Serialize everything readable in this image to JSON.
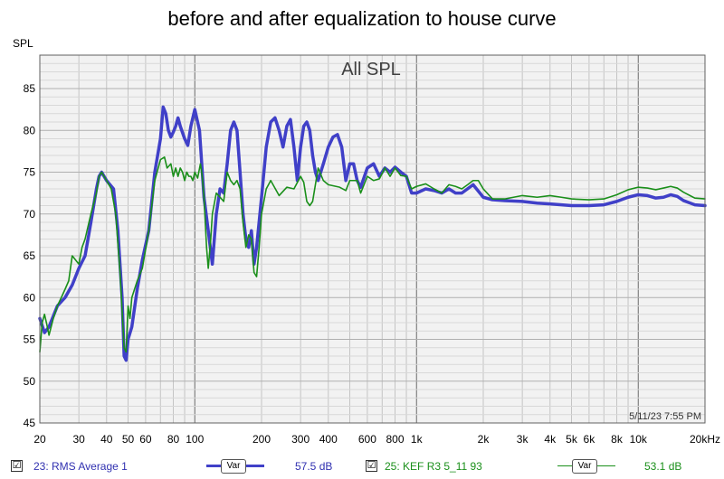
{
  "title": "before and after equalization to house curve",
  "chart_data": {
    "type": "line",
    "title": "All SPL",
    "ylabel": "SPL",
    "xlabel": "",
    "x_scale": "log",
    "xlim": [
      20,
      20000
    ],
    "ylim": [
      45,
      89
    ],
    "yticks": [
      45,
      50,
      55,
      60,
      65,
      70,
      75,
      80,
      85
    ],
    "xticks": [
      {
        "value": 20,
        "label": "20"
      },
      {
        "value": 30,
        "label": "30"
      },
      {
        "value": 40,
        "label": "40"
      },
      {
        "value": 50,
        "label": "50"
      },
      {
        "value": 60,
        "label": "60"
      },
      {
        "value": 80,
        "label": "80"
      },
      {
        "value": 100,
        "label": "100"
      },
      {
        "value": 200,
        "label": "200"
      },
      {
        "value": 300,
        "label": "300"
      },
      {
        "value": 400,
        "label": "400"
      },
      {
        "value": 600,
        "label": "600"
      },
      {
        "value": 800,
        "label": "800"
      },
      {
        "value": 1000,
        "label": "1k"
      },
      {
        "value": 2000,
        "label": "2k"
      },
      {
        "value": 3000,
        "label": "3k"
      },
      {
        "value": 4000,
        "label": "4k"
      },
      {
        "value": 5000,
        "label": "5k"
      },
      {
        "value": 6000,
        "label": "6k"
      },
      {
        "value": 8000,
        "label": "8k"
      },
      {
        "value": 10000,
        "label": "10k"
      },
      {
        "value": 20000,
        "label": "20kHz"
      }
    ],
    "grid": true,
    "timestamp": "5/11/23 7:55 PM",
    "series": [
      {
        "name": "23: RMS Average 1",
        "color": "#4040c8",
        "points": [
          [
            20,
            57.5
          ],
          [
            21,
            55.8
          ],
          [
            22,
            56.5
          ],
          [
            24,
            59
          ],
          [
            26,
            60
          ],
          [
            28,
            61.5
          ],
          [
            30,
            63.5
          ],
          [
            32,
            65
          ],
          [
            34,
            69
          ],
          [
            36,
            73
          ],
          [
            37,
            74.5
          ],
          [
            38,
            75
          ],
          [
            40,
            74
          ],
          [
            43,
            73
          ],
          [
            45,
            68
          ],
          [
            47,
            60
          ],
          [
            48,
            53
          ],
          [
            49,
            52.5
          ],
          [
            50,
            55
          ],
          [
            52,
            56.5
          ],
          [
            55,
            61
          ],
          [
            58,
            64.5
          ],
          [
            62,
            68
          ],
          [
            66,
            75
          ],
          [
            70,
            79
          ],
          [
            72,
            82.8
          ],
          [
            74,
            82
          ],
          [
            76,
            80
          ],
          [
            78,
            79.2
          ],
          [
            80,
            79.8
          ],
          [
            82,
            80.5
          ],
          [
            84,
            81.5
          ],
          [
            86,
            80.5
          ],
          [
            90,
            79
          ],
          [
            93,
            78.2
          ],
          [
            96,
            80.5
          ],
          [
            100,
            82.5
          ],
          [
            105,
            80
          ],
          [
            110,
            72
          ],
          [
            115,
            68
          ],
          [
            120,
            64
          ],
          [
            125,
            70
          ],
          [
            130,
            73
          ],
          [
            135,
            72.5
          ],
          [
            140,
            76
          ],
          [
            145,
            80
          ],
          [
            150,
            81
          ],
          [
            155,
            80
          ],
          [
            160,
            75
          ],
          [
            165,
            70
          ],
          [
            170,
            67
          ],
          [
            175,
            66
          ],
          [
            180,
            68
          ],
          [
            185,
            64
          ],
          [
            190,
            66
          ],
          [
            200,
            72
          ],
          [
            210,
            78
          ],
          [
            220,
            81
          ],
          [
            230,
            81.5
          ],
          [
            240,
            80
          ],
          [
            250,
            78
          ],
          [
            260,
            80.5
          ],
          [
            270,
            81.3
          ],
          [
            280,
            78
          ],
          [
            290,
            74
          ],
          [
            300,
            78
          ],
          [
            310,
            80.5
          ],
          [
            320,
            81
          ],
          [
            330,
            80
          ],
          [
            340,
            77
          ],
          [
            350,
            75
          ],
          [
            360,
            74
          ],
          [
            380,
            76
          ],
          [
            400,
            78
          ],
          [
            420,
            79.2
          ],
          [
            440,
            79.5
          ],
          [
            460,
            78
          ],
          [
            480,
            74
          ],
          [
            500,
            76
          ],
          [
            520,
            76
          ],
          [
            540,
            74
          ],
          [
            560,
            73.2
          ],
          [
            600,
            75.5
          ],
          [
            640,
            76
          ],
          [
            680,
            74.5
          ],
          [
            720,
            75.5
          ],
          [
            760,
            75
          ],
          [
            800,
            75.6
          ],
          [
            850,
            75
          ],
          [
            900,
            74.5
          ],
          [
            950,
            72.5
          ],
          [
            1000,
            72.5
          ],
          [
            1100,
            73
          ],
          [
            1200,
            72.8
          ],
          [
            1300,
            72.5
          ],
          [
            1400,
            73
          ],
          [
            1500,
            72.5
          ],
          [
            1600,
            72.5
          ],
          [
            1800,
            73.5
          ],
          [
            2000,
            72
          ],
          [
            2200,
            71.7
          ],
          [
            2500,
            71.6
          ],
          [
            3000,
            71.5
          ],
          [
            3500,
            71.3
          ],
          [
            4000,
            71.2
          ],
          [
            5000,
            71
          ],
          [
            6000,
            71
          ],
          [
            7000,
            71.1
          ],
          [
            8000,
            71.5
          ],
          [
            9000,
            72
          ],
          [
            10000,
            72.3
          ],
          [
            11000,
            72.2
          ],
          [
            12000,
            71.9
          ],
          [
            13000,
            72
          ],
          [
            14000,
            72.3
          ],
          [
            15000,
            72.1
          ],
          [
            16000,
            71.6
          ],
          [
            18000,
            71.1
          ],
          [
            20000,
            71
          ]
        ]
      },
      {
        "name": "25: KEF R3 5_11 93",
        "color": "#1a8f1a",
        "points": [
          [
            20,
            53.5
          ],
          [
            20.5,
            57
          ],
          [
            21,
            58
          ],
          [
            21.5,
            56.8
          ],
          [
            22,
            55.5
          ],
          [
            23,
            57.5
          ],
          [
            24,
            59
          ],
          [
            25,
            60
          ],
          [
            26,
            61
          ],
          [
            27,
            62
          ],
          [
            28,
            65
          ],
          [
            30,
            64
          ],
          [
            31,
            66
          ],
          [
            32,
            67
          ],
          [
            34,
            70
          ],
          [
            36,
            72.5
          ],
          [
            37,
            74.5
          ],
          [
            38,
            75
          ],
          [
            40,
            74
          ],
          [
            42,
            73
          ],
          [
            44,
            70
          ],
          [
            46,
            63
          ],
          [
            48,
            54
          ],
          [
            49,
            53.5
          ],
          [
            50,
            59
          ],
          [
            51,
            57.5
          ],
          [
            52,
            60
          ],
          [
            55,
            62
          ],
          [
            58,
            63.5
          ],
          [
            62,
            68
          ],
          [
            66,
            74
          ],
          [
            70,
            76.5
          ],
          [
            73,
            76.8
          ],
          [
            75,
            75.5
          ],
          [
            78,
            76
          ],
          [
            80,
            74.5
          ],
          [
            82,
            75.5
          ],
          [
            84,
            74.5
          ],
          [
            86,
            75.5
          ],
          [
            88,
            75
          ],
          [
            90,
            74
          ],
          [
            92,
            75
          ],
          [
            94,
            74.5
          ],
          [
            96,
            74.5
          ],
          [
            98,
            74
          ],
          [
            100,
            75
          ],
          [
            103,
            74.3
          ],
          [
            106,
            76
          ],
          [
            108,
            74.5
          ],
          [
            110,
            72
          ],
          [
            113,
            66
          ],
          [
            115,
            63.5
          ],
          [
            118,
            67
          ],
          [
            120,
            70
          ],
          [
            125,
            72.5
          ],
          [
            130,
            72
          ],
          [
            135,
            71.5
          ],
          [
            140,
            75
          ],
          [
            145,
            74
          ],
          [
            150,
            73.5
          ],
          [
            155,
            74
          ],
          [
            160,
            73
          ],
          [
            165,
            69
          ],
          [
            170,
            66
          ],
          [
            175,
            67.5
          ],
          [
            180,
            67
          ],
          [
            185,
            63
          ],
          [
            190,
            62.5
          ],
          [
            195,
            66
          ],
          [
            200,
            70
          ],
          [
            210,
            73
          ],
          [
            220,
            74
          ],
          [
            240,
            72.2
          ],
          [
            260,
            73.2
          ],
          [
            280,
            73
          ],
          [
            300,
            74.5
          ],
          [
            310,
            73.8
          ],
          [
            320,
            71.5
          ],
          [
            330,
            71
          ],
          [
            340,
            71.5
          ],
          [
            360,
            75.5
          ],
          [
            380,
            74
          ],
          [
            400,
            73.5
          ],
          [
            450,
            73.2
          ],
          [
            480,
            72.8
          ],
          [
            500,
            74
          ],
          [
            540,
            74
          ],
          [
            560,
            72.5
          ],
          [
            600,
            74.5
          ],
          [
            640,
            74
          ],
          [
            680,
            74.2
          ],
          [
            720,
            75.5
          ],
          [
            760,
            74.5
          ],
          [
            800,
            75.5
          ],
          [
            850,
            74.6
          ],
          [
            900,
            74.5
          ],
          [
            950,
            73
          ],
          [
            1000,
            73.3
          ],
          [
            1100,
            73.6
          ],
          [
            1200,
            73
          ],
          [
            1300,
            72.5
          ],
          [
            1400,
            73.5
          ],
          [
            1500,
            73.3
          ],
          [
            1600,
            73
          ],
          [
            1700,
            73.5
          ],
          [
            1800,
            74
          ],
          [
            1900,
            74
          ],
          [
            2000,
            73
          ],
          [
            2200,
            71.8
          ],
          [
            2500,
            71.8
          ],
          [
            3000,
            72.2
          ],
          [
            3500,
            72
          ],
          [
            4000,
            72.2
          ],
          [
            4500,
            72
          ],
          [
            5000,
            71.8
          ],
          [
            6000,
            71.7
          ],
          [
            7000,
            71.8
          ],
          [
            8000,
            72.3
          ],
          [
            9000,
            72.9
          ],
          [
            10000,
            73.2
          ],
          [
            11000,
            73.1
          ],
          [
            12000,
            72.9
          ],
          [
            13000,
            73.1
          ],
          [
            14000,
            73.3
          ],
          [
            15000,
            73.1
          ],
          [
            16000,
            72.6
          ],
          [
            18000,
            71.9
          ],
          [
            20000,
            71.8
          ]
        ]
      }
    ]
  },
  "legend": [
    {
      "checked": "☑",
      "label": "23: RMS Average 1",
      "var_label": "Var",
      "value": "57.5 dB",
      "color": "#3030b0"
    },
    {
      "checked": "☑",
      "label": "25: KEF R3 5_11 93",
      "var_label": "Var",
      "value": "53.1 dB",
      "color": "#1a8f1a"
    }
  ]
}
